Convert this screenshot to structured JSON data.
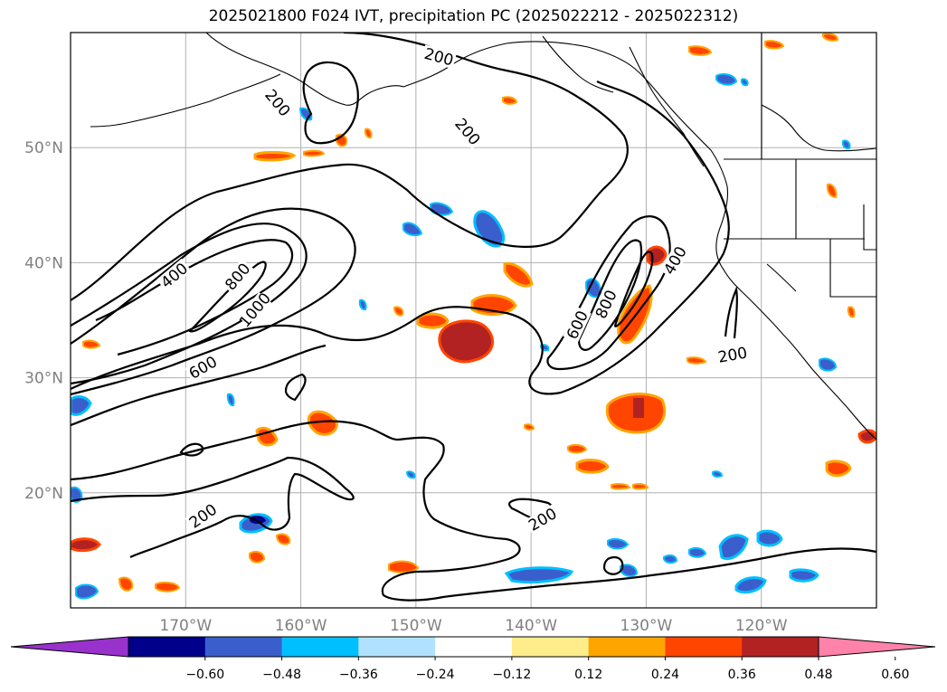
{
  "title": "2025021800 F024 IVT, precipitation PC (2025022212 - 2025022312)",
  "map": {
    "lat_labels": [
      {
        "lat": 50,
        "label": "50°N"
      },
      {
        "lat": 40,
        "label": "40°N"
      },
      {
        "lat": 30,
        "label": "30°N"
      },
      {
        "lat": 20,
        "label": "20°N"
      }
    ],
    "lon_labels": [
      {
        "lon": -170,
        "label": "170°W"
      },
      {
        "lon": -160,
        "label": "160°W"
      },
      {
        "lon": -150,
        "label": "150°W"
      },
      {
        "lon": -140,
        "label": "140°W"
      },
      {
        "lon": -130,
        "label": "130°W"
      },
      {
        "lon": -120,
        "label": "120°W"
      }
    ],
    "contour_labels": [
      {
        "text": "200",
        "lon": -148.0,
        "lat": 57.9,
        "rot": 15
      },
      {
        "text": "200",
        "lon": -162.0,
        "lat": 53.9,
        "rot": 50
      },
      {
        "text": "200",
        "lon": -145.5,
        "lat": 51.4,
        "rot": 50
      },
      {
        "text": "400",
        "lon": -171.0,
        "lat": 38.9,
        "rot": -40
      },
      {
        "text": "800",
        "lon": -165.5,
        "lat": 38.8,
        "rot": -50
      },
      {
        "text": "1000",
        "lon": -164.0,
        "lat": 35.9,
        "rot": -50
      },
      {
        "text": "600",
        "lon": -168.5,
        "lat": 30.9,
        "rot": -30
      },
      {
        "text": "600",
        "lon": -136.0,
        "lat": 34.6,
        "rot": -65
      },
      {
        "text": "800",
        "lon": -133.5,
        "lat": 36.4,
        "rot": -65
      },
      {
        "text": "400",
        "lon": -127.5,
        "lat": 40.2,
        "rot": -60
      },
      {
        "text": "200",
        "lon": -122.5,
        "lat": 32.0,
        "rot": -10
      },
      {
        "text": "200",
        "lon": -168.5,
        "lat": 18.0,
        "rot": -35
      },
      {
        "text": "200",
        "lon": -139.0,
        "lat": 17.7,
        "rot": -30
      }
    ]
  },
  "colorbar": {
    "colors": [
      "#9932cc",
      "#00008b",
      "#3a5fcd",
      "#00bfff",
      "#b0e2ff",
      "#ffffff",
      "#ffec8b",
      "#ffa500",
      "#ff4500",
      "#b22222",
      "#ff82ab"
    ],
    "tick_labels": [
      "−0.60",
      "−0.48",
      "−0.36",
      "−0.24",
      "−0.12",
      "0.12",
      "0.24",
      "0.36",
      "0.48",
      "0.60"
    ]
  }
}
